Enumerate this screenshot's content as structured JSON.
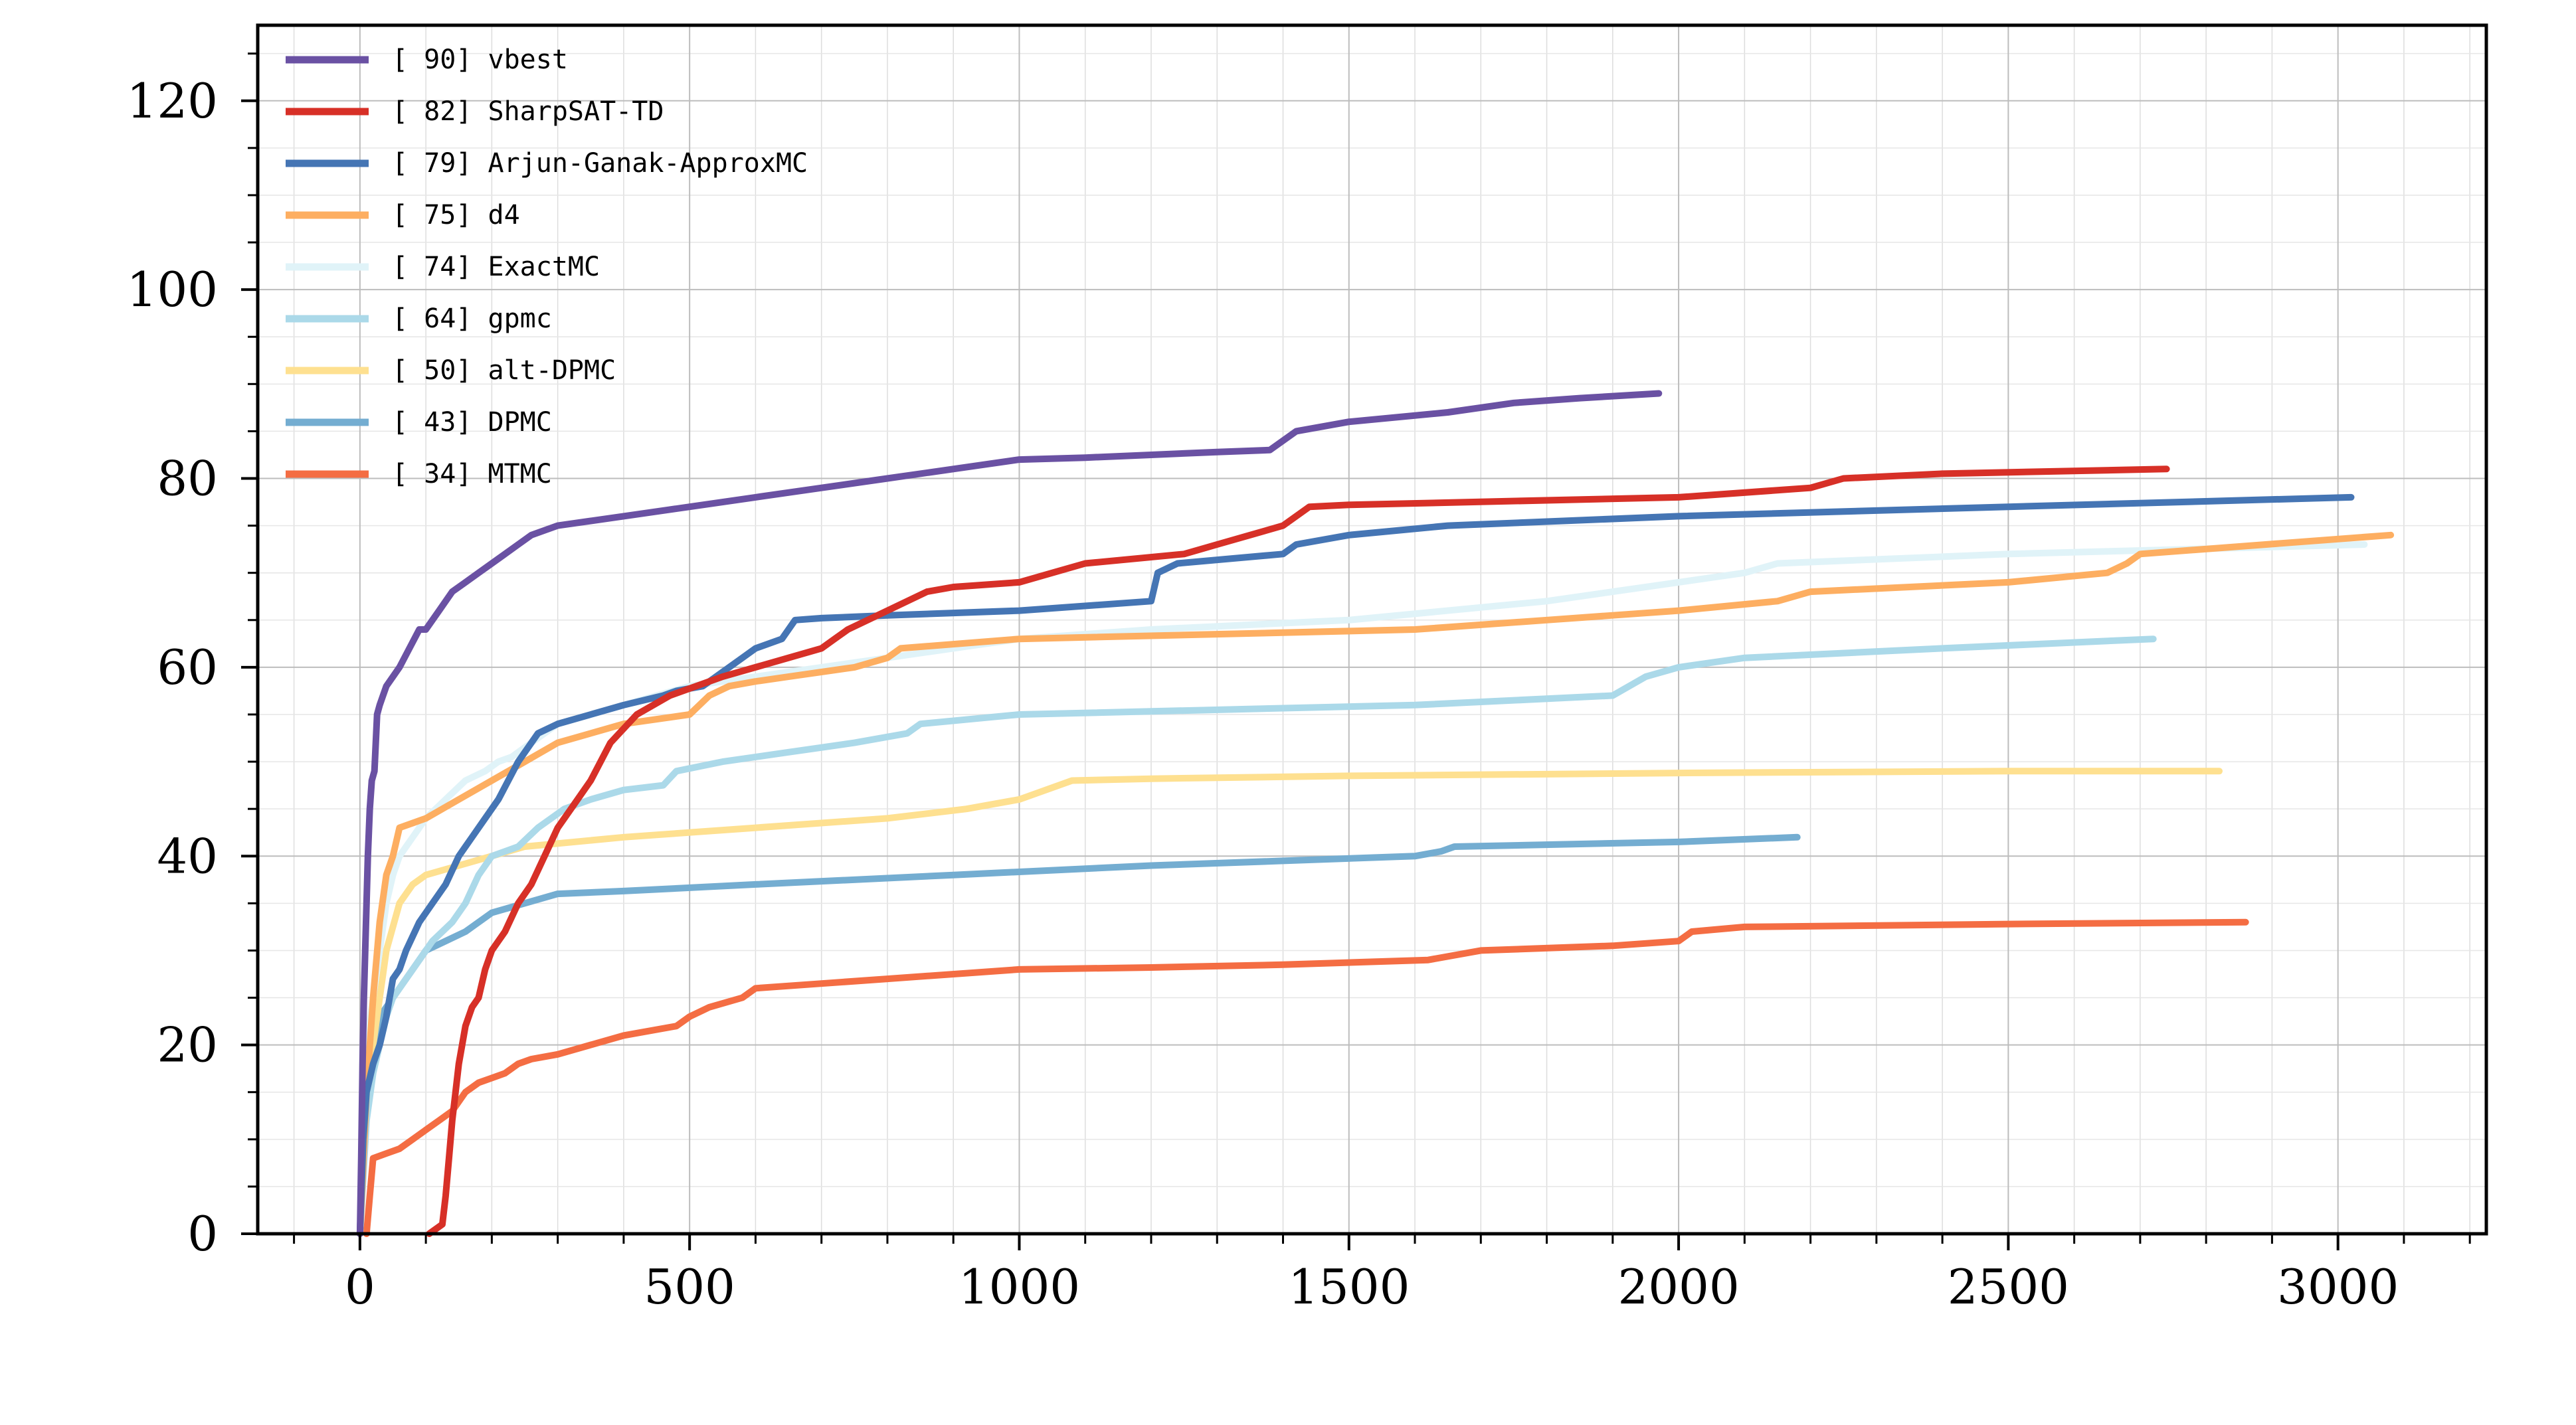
{
  "chart_data": {
    "type": "line",
    "title": "",
    "xlabel": "",
    "ylabel": "",
    "xlim": [
      -155,
      3225
    ],
    "ylim": [
      0,
      128
    ],
    "xticks": [
      0,
      500,
      1000,
      1500,
      2000,
      2500,
      3000
    ],
    "xtick_labels": [
      "0",
      "500",
      "1000",
      "1500",
      "2000",
      "2500",
      "3000"
    ],
    "yticks": [
      0,
      20,
      40,
      60,
      80,
      100,
      120
    ],
    "ytick_labels": [
      "0",
      "20",
      "40",
      "60",
      "80",
      "100",
      "120"
    ],
    "grid": true,
    "legend_position": "top-left",
    "series": [
      {
        "name": "[ 90] vbest",
        "color": "#6a51a3",
        "x": [
          0,
          2,
          4,
          6,
          8,
          10,
          12,
          15,
          18,
          22,
          26,
          30,
          35,
          40,
          50,
          60,
          75,
          90,
          100,
          120,
          140,
          160,
          180,
          200,
          220,
          240,
          260,
          300,
          350,
          400,
          500,
          600,
          700,
          800,
          900,
          1000,
          1100,
          1200,
          1300,
          1380,
          1420,
          1500,
          1650,
          1750,
          1850,
          1970
        ],
        "y": [
          0,
          8,
          18,
          25,
          30,
          35,
          40,
          45,
          48,
          49,
          55,
          56,
          57,
          58,
          59,
          60,
          62,
          64,
          64,
          66,
          68,
          69,
          70,
          71,
          72,
          73,
          74,
          75,
          75.5,
          76,
          77,
          78,
          79,
          80,
          81,
          82,
          82.2,
          82.5,
          82.8,
          83,
          85,
          86,
          87,
          88,
          88.5,
          89
        ]
      },
      {
        "name": "[ 82] SharpSAT-TD",
        "color": "#d73027",
        "x": [
          105,
          125,
          130,
          135,
          140,
          145,
          150,
          160,
          170,
          180,
          190,
          200,
          210,
          220,
          240,
          260,
          280,
          300,
          320,
          350,
          380,
          420,
          470,
          550,
          650,
          700,
          720,
          740,
          800,
          860,
          900,
          1000,
          1050,
          1100,
          1250,
          1300,
          1350,
          1400,
          1440,
          1500,
          2000,
          2200,
          2250,
          2400,
          2740
        ],
        "y": [
          0,
          1,
          4,
          8,
          12,
          15,
          18,
          22,
          24,
          25,
          28,
          30,
          31,
          32,
          35,
          37,
          40,
          43,
          45,
          48,
          52,
          55,
          57,
          59,
          61,
          62,
          63,
          64,
          66,
          68,
          68.5,
          69,
          70,
          71,
          72,
          73,
          74,
          75,
          77,
          77.2,
          78,
          79,
          80,
          80.5,
          81
        ]
      },
      {
        "name": "[ 79] Arjun-Ganak-ApproxMC",
        "color": "#4575b4",
        "x": [
          0,
          5,
          10,
          20,
          30,
          40,
          50,
          60,
          70,
          90,
          110,
          130,
          150,
          170,
          190,
          210,
          240,
          270,
          300,
          350,
          400,
          460,
          480,
          520,
          540,
          560,
          580,
          600,
          640,
          660,
          700,
          800,
          1000,
          1200,
          1210,
          1240,
          1400,
          1420,
          1500,
          1650,
          2000,
          2500,
          3020
        ],
        "y": [
          0,
          10,
          15,
          18,
          20,
          23,
          27,
          28,
          30,
          33,
          35,
          37,
          40,
          42,
          44,
          46,
          50,
          53,
          54,
          55,
          56,
          57,
          57.5,
          58,
          59,
          60,
          61,
          62,
          63,
          65,
          65.2,
          65.5,
          66,
          67,
          70,
          71,
          72,
          73,
          74,
          75,
          76,
          77,
          78
        ]
      },
      {
        "name": "[ 75] d4",
        "color": "#fdae61",
        "x": [
          0,
          10,
          20,
          30,
          40,
          50,
          60,
          80,
          100,
          150,
          200,
          250,
          300,
          400,
          500,
          530,
          560,
          600,
          650,
          750,
          800,
          820,
          1000,
          1600,
          1800,
          1900,
          2000,
          2150,
          2200,
          2500,
          2650,
          2680,
          2700,
          3080
        ],
        "y": [
          0,
          15,
          25,
          33,
          38,
          40,
          43,
          43.5,
          44,
          46,
          48,
          50,
          52,
          54,
          55,
          57,
          58,
          58.5,
          59,
          60,
          61,
          62,
          63,
          64,
          65,
          65.5,
          66,
          67,
          68,
          69,
          70,
          71,
          72,
          74
        ]
      },
      {
        "name": "[ 74] ExactMC",
        "color": "#e0f3f8",
        "x": [
          0,
          5,
          10,
          20,
          30,
          40,
          50,
          60,
          80,
          100,
          130,
          160,
          190,
          210,
          230,
          260,
          300,
          400,
          500,
          600,
          700,
          800,
          900,
          1000,
          1200,
          1500,
          1800,
          2100,
          2150,
          2500,
          3040
        ],
        "y": [
          0,
          12,
          20,
          25,
          30,
          35,
          38,
          40,
          42,
          44,
          46,
          48,
          49,
          50,
          50.5,
          52,
          54,
          56,
          58,
          59,
          60,
          61,
          62,
          63,
          64,
          65,
          67,
          70,
          71,
          72,
          73
        ]
      },
      {
        "name": "[ 64] gpmc",
        "color": "#abd9e9",
        "x": [
          0,
          10,
          20,
          30,
          40,
          50,
          70,
          90,
          110,
          140,
          160,
          180,
          200,
          240,
          270,
          290,
          310,
          350,
          400,
          460,
          480,
          550,
          650,
          750,
          830,
          850,
          1000,
          1600,
          1900,
          1950,
          2000,
          2100,
          2400,
          2720
        ],
        "y": [
          0,
          12,
          17,
          20,
          23,
          25,
          27,
          29,
          31,
          33,
          35,
          38,
          40,
          41,
          43,
          44,
          45,
          46,
          47,
          47.5,
          49,
          50,
          51,
          52,
          53,
          54,
          55,
          56,
          57,
          59,
          60,
          61,
          62,
          63
        ]
      },
      {
        "name": "[ 50] alt-DPMC",
        "color": "#fee090",
        "x": [
          0,
          10,
          20,
          30,
          40,
          60,
          80,
          100,
          150,
          250,
          400,
          600,
          800,
          920,
          1000,
          1080,
          1200,
          1500,
          2000,
          2500,
          2820
        ],
        "y": [
          0,
          14,
          20,
          25,
          30,
          35,
          37,
          38,
          39,
          41,
          42,
          43,
          44,
          45,
          46,
          48,
          48.2,
          48.5,
          48.8,
          49,
          49
        ]
      },
      {
        "name": "[ 43] DPMC",
        "color": "#74add1",
        "x": [
          0,
          5,
          10,
          20,
          30,
          40,
          50,
          60,
          80,
          100,
          130,
          160,
          180,
          200,
          250,
          300,
          400,
          600,
          900,
          1200,
          1400,
          1600,
          1640,
          1660,
          2000,
          2180
        ],
        "y": [
          0,
          10,
          15,
          20,
          23,
          24,
          25,
          26,
          28,
          30,
          31,
          32,
          33,
          34,
          35,
          36,
          36.3,
          37,
          38,
          39,
          39.5,
          40,
          40.5,
          41,
          41.5,
          42
        ]
      },
      {
        "name": "[ 34] MTMC",
        "color": "#f46d43",
        "x": [
          10,
          15,
          20,
          40,
          60,
          80,
          100,
          120,
          140,
          160,
          180,
          200,
          220,
          240,
          260,
          300,
          400,
          480,
          500,
          530,
          580,
          600,
          700,
          800,
          1000,
          1200,
          1400,
          1620,
          1700,
          1900,
          2000,
          2020,
          2100,
          2500,
          2860
        ],
        "y": [
          0,
          4,
          8,
          8.5,
          9,
          10,
          11,
          12,
          13,
          15,
          16,
          16.5,
          17,
          18,
          18.5,
          19,
          21,
          22,
          23,
          24,
          25,
          26,
          26.5,
          27,
          28,
          28.2,
          28.5,
          29,
          30,
          30.5,
          31,
          32,
          32.5,
          32.8,
          33
        ]
      }
    ]
  }
}
